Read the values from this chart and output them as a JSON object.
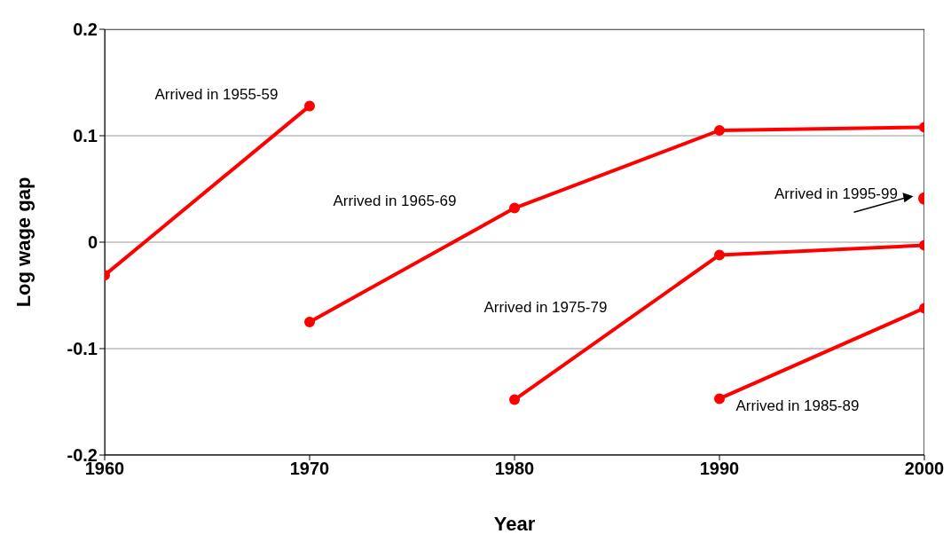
{
  "chart_data": {
    "type": "line",
    "xlabel": "Year",
    "ylabel": "Log wage gap",
    "xlim": [
      1960,
      2000
    ],
    "xticks": [
      1960,
      1970,
      1980,
      1990,
      2000
    ],
    "ylim": [
      -0.2,
      0.2
    ],
    "yticks": [
      -0.2,
      -0.1,
      0,
      0.1,
      0.2
    ],
    "grid": "y",
    "legend": false,
    "marker": "circle",
    "line_style": "solid",
    "series": [
      {
        "name": "Arrived in 1955-59",
        "color": "#ff0000",
        "x": [
          1960,
          1970
        ],
        "values": [
          -0.031,
          0.128
        ]
      },
      {
        "name": "Arrived in 1965-69",
        "color": "#ff0000",
        "x": [
          1970,
          1980,
          1990,
          2000
        ],
        "values": [
          -0.075,
          0.032,
          0.105,
          0.108
        ]
      },
      {
        "name": "Arrived in 1975-79",
        "color": "#ff0000",
        "x": [
          1980,
          1990,
          2000
        ],
        "values": [
          -0.148,
          -0.012,
          -0.003
        ]
      },
      {
        "name": "Arrived in 1985-89",
        "color": "#ff0000",
        "x": [
          1990,
          2000
        ],
        "values": [
          -0.147,
          -0.062
        ]
      },
      {
        "name": "Arrived in 1995-99",
        "type": "scatter",
        "color": "#ff0000",
        "x": [
          2000
        ],
        "values": [
          0.041
        ]
      }
    ]
  }
}
